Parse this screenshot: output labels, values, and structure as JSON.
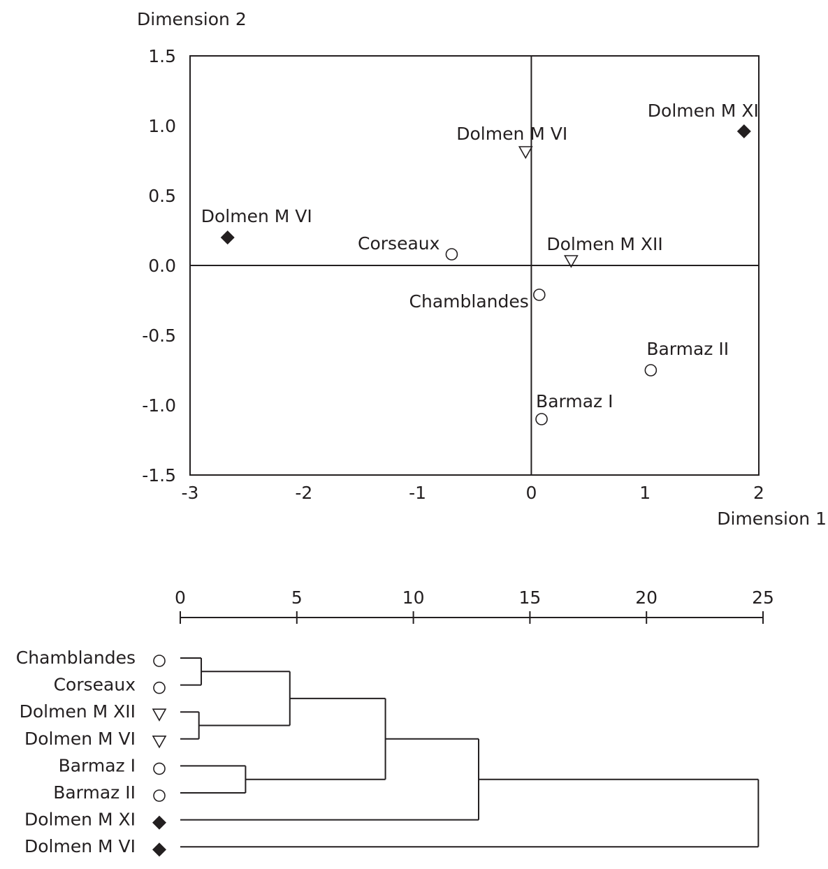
{
  "chart_data": [
    {
      "type": "scatter",
      "title": "",
      "xlabel": "Dimension 1",
      "ylabel": "Dimension 2",
      "xlim": [
        -3,
        2
      ],
      "ylim": [
        -1.5,
        1.5
      ],
      "x_ticks": [
        "-3",
        "-2",
        "-1",
        "0",
        "1",
        "2"
      ],
      "y_ticks": [
        "1.5",
        "1.0",
        "0.5",
        "0.0",
        "-0.5",
        "-1.0",
        "-1.5"
      ],
      "grid": false,
      "reference_lines": {
        "x": 0,
        "y": 0
      },
      "points": [
        {
          "label": "Dolmen M XI",
          "x": 1.87,
          "y": 0.96,
          "marker": "diamond"
        },
        {
          "label": "Dolmen M VI",
          "x": -0.05,
          "y": 0.81,
          "marker": "triangle"
        },
        {
          "label": "Dolmen M VI",
          "x": -2.67,
          "y": 0.2,
          "marker": "diamond"
        },
        {
          "label": "Corseaux",
          "x": -0.7,
          "y": 0.08,
          "marker": "circle"
        },
        {
          "label": "Dolmen M XII",
          "x": 0.35,
          "y": 0.03,
          "marker": "triangle"
        },
        {
          "label": "Chamblandes",
          "x": 0.07,
          "y": -0.21,
          "marker": "circle"
        },
        {
          "label": "Barmaz II",
          "x": 1.05,
          "y": -0.75,
          "marker": "circle"
        },
        {
          "label": "Barmaz I",
          "x": 0.09,
          "y": -1.1,
          "marker": "circle"
        }
      ]
    },
    {
      "type": "dendrogram",
      "title": "",
      "xlim": [
        0,
        25
      ],
      "x_ticks": [
        "0",
        "5",
        "10",
        "15",
        "20",
        "25"
      ],
      "leaves": [
        {
          "label": "Chamblandes",
          "marker": "circle"
        },
        {
          "label": "Corseaux",
          "marker": "circle"
        },
        {
          "label": "Dolmen M XII",
          "marker": "triangle"
        },
        {
          "label": "Dolmen M VI",
          "marker": "triangle"
        },
        {
          "label": "Barmaz I",
          "marker": "circle"
        },
        {
          "label": "Barmaz II",
          "marker": "circle"
        },
        {
          "label": "Dolmen M XI",
          "marker": "diamond"
        },
        {
          "label": "Dolmen M VI",
          "marker": "diamond"
        }
      ],
      "merges": [
        {
          "a": 0,
          "b": 1,
          "height": 0.9
        },
        {
          "a": 2,
          "b": 3,
          "height": 0.8
        },
        {
          "a": 4,
          "b": 5,
          "height": 2.8
        },
        {
          "a": 8,
          "b": 9,
          "height": 4.7
        },
        {
          "a": 11,
          "b": 10,
          "height": 8.8
        },
        {
          "a": 12,
          "b": 6,
          "height": 12.8
        },
        {
          "a": 13,
          "b": 7,
          "height": 24.8
        }
      ]
    }
  ]
}
